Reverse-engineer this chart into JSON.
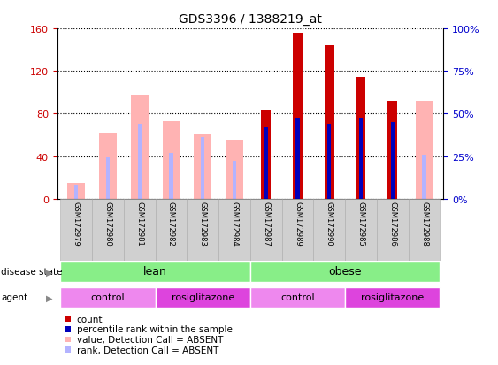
{
  "title": "GDS3396 / 1388219_at",
  "samples": [
    "GSM172979",
    "GSM172980",
    "GSM172981",
    "GSM172982",
    "GSM172983",
    "GSM172984",
    "GSM172987",
    "GSM172989",
    "GSM172990",
    "GSM172985",
    "GSM172986",
    "GSM172988"
  ],
  "count_values": [
    0,
    0,
    0,
    0,
    0,
    0,
    84,
    156,
    144,
    114,
    92,
    0
  ],
  "rank_values_pct": [
    0,
    0,
    0,
    0,
    0,
    0,
    42,
    47,
    44,
    47,
    45,
    0
  ],
  "value_absent": [
    15,
    62,
    98,
    73,
    60,
    55,
    0,
    0,
    0,
    0,
    0,
    92
  ],
  "rank_absent_pct": [
    8,
    24,
    44,
    27,
    36,
    22,
    0,
    0,
    0,
    0,
    0,
    26
  ],
  "count_color": "#cc0000",
  "rank_color": "#0000bb",
  "value_absent_color": "#ffb3b3",
  "rank_absent_color": "#b3b3ff",
  "ylim_left": [
    0,
    160
  ],
  "ylim_right": [
    0,
    100
  ],
  "left_ticks": [
    0,
    40,
    80,
    120,
    160
  ],
  "right_ticks": [
    0,
    25,
    50,
    75,
    100
  ],
  "left_tick_labels": [
    "0",
    "40",
    "80",
    "120",
    "160"
  ],
  "right_tick_labels": [
    "0%",
    "25%",
    "50%",
    "75%",
    "100%"
  ],
  "disease_state_labels": [
    {
      "label": "lean",
      "start": 0,
      "end": 6
    },
    {
      "label": "obese",
      "start": 6,
      "end": 12
    }
  ],
  "agent_labels": [
    {
      "label": "control",
      "start": 0,
      "end": 3
    },
    {
      "label": "rosiglitazone",
      "start": 3,
      "end": 6
    },
    {
      "label": "control",
      "start": 6,
      "end": 9
    },
    {
      "label": "rosiglitazone",
      "start": 9,
      "end": 12
    }
  ],
  "disease_state_color": "#88ee88",
  "agent_color_control": "#ee88ee",
  "agent_color_rosi": "#dd44dd",
  "tick_color_left": "#cc0000",
  "tick_color_right": "#0000cc"
}
